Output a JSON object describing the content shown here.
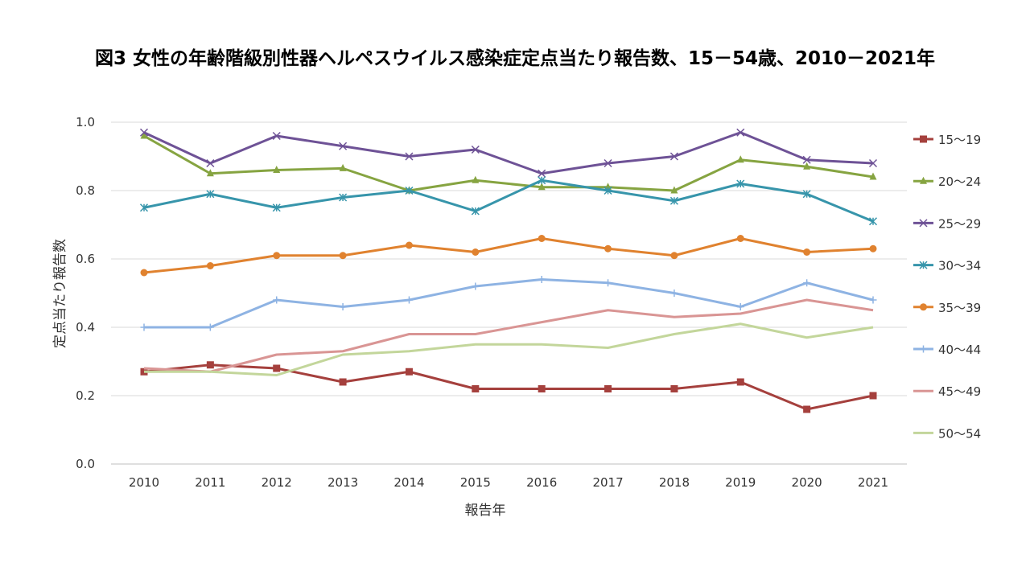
{
  "chart_data": {
    "type": "line",
    "title": "図3 女性の年齢階級別性器ヘルペスウイルス感染症定点当たり報告数、15－54歳、2010－2021年",
    "xlabel": "報告年",
    "ylabel": "定点当たり報告数",
    "ylim": [
      0,
      1.0
    ],
    "yticks": [
      "0.0",
      "0.2",
      "0.4",
      "0.6",
      "0.8",
      "1.0"
    ],
    "categories": [
      "2010",
      "2011",
      "2012",
      "2013",
      "2014",
      "2015",
      "2016",
      "2017",
      "2018",
      "2019",
      "2020",
      "2021"
    ],
    "grid": true,
    "legend": "right",
    "series": [
      {
        "name": "15～19",
        "color": "#a5403d",
        "marker": "square",
        "values": [
          0.27,
          0.29,
          0.28,
          0.24,
          0.27,
          0.22,
          0.22,
          0.22,
          0.22,
          0.24,
          0.16,
          0.2
        ]
      },
      {
        "name": "20～24",
        "color": "#86a441",
        "marker": "triangle",
        "values": [
          0.96,
          0.85,
          0.86,
          0.865,
          0.8,
          0.83,
          0.81,
          0.81,
          0.8,
          0.89,
          0.87,
          0.84
        ]
      },
      {
        "name": "25～29",
        "color": "#6e5296",
        "marker": "x",
        "values": [
          0.97,
          0.88,
          0.96,
          0.93,
          0.9,
          0.92,
          0.85,
          0.88,
          0.9,
          0.97,
          0.89,
          0.88
        ]
      },
      {
        "name": "30～34",
        "color": "#3795ab",
        "marker": "asterisk",
        "values": [
          0.75,
          0.79,
          0.75,
          0.78,
          0.8,
          0.74,
          0.83,
          0.8,
          0.77,
          0.82,
          0.79,
          0.71
        ]
      },
      {
        "name": "35～39",
        "color": "#e0822f",
        "marker": "circle",
        "values": [
          0.56,
          0.58,
          0.61,
          0.61,
          0.64,
          0.62,
          0.66,
          0.63,
          0.61,
          0.66,
          0.62,
          0.63
        ]
      },
      {
        "name": "40～44",
        "color": "#8eb3e3",
        "marker": "plus",
        "values": [
          0.4,
          0.4,
          0.48,
          0.46,
          0.48,
          0.52,
          0.54,
          0.53,
          0.5,
          0.46,
          0.53,
          0.48
        ]
      },
      {
        "name": "45～49",
        "color": "#d99594",
        "marker": "none",
        "values": [
          0.28,
          0.27,
          0.32,
          0.33,
          0.38,
          0.38,
          0.415,
          0.45,
          0.43,
          0.44,
          0.48,
          0.45
        ]
      },
      {
        "name": "50～54",
        "color": "#c3d69b",
        "marker": "none",
        "values": [
          0.27,
          0.27,
          0.26,
          0.32,
          0.33,
          0.35,
          0.35,
          0.34,
          0.38,
          0.41,
          0.37,
          0.4
        ]
      }
    ]
  }
}
